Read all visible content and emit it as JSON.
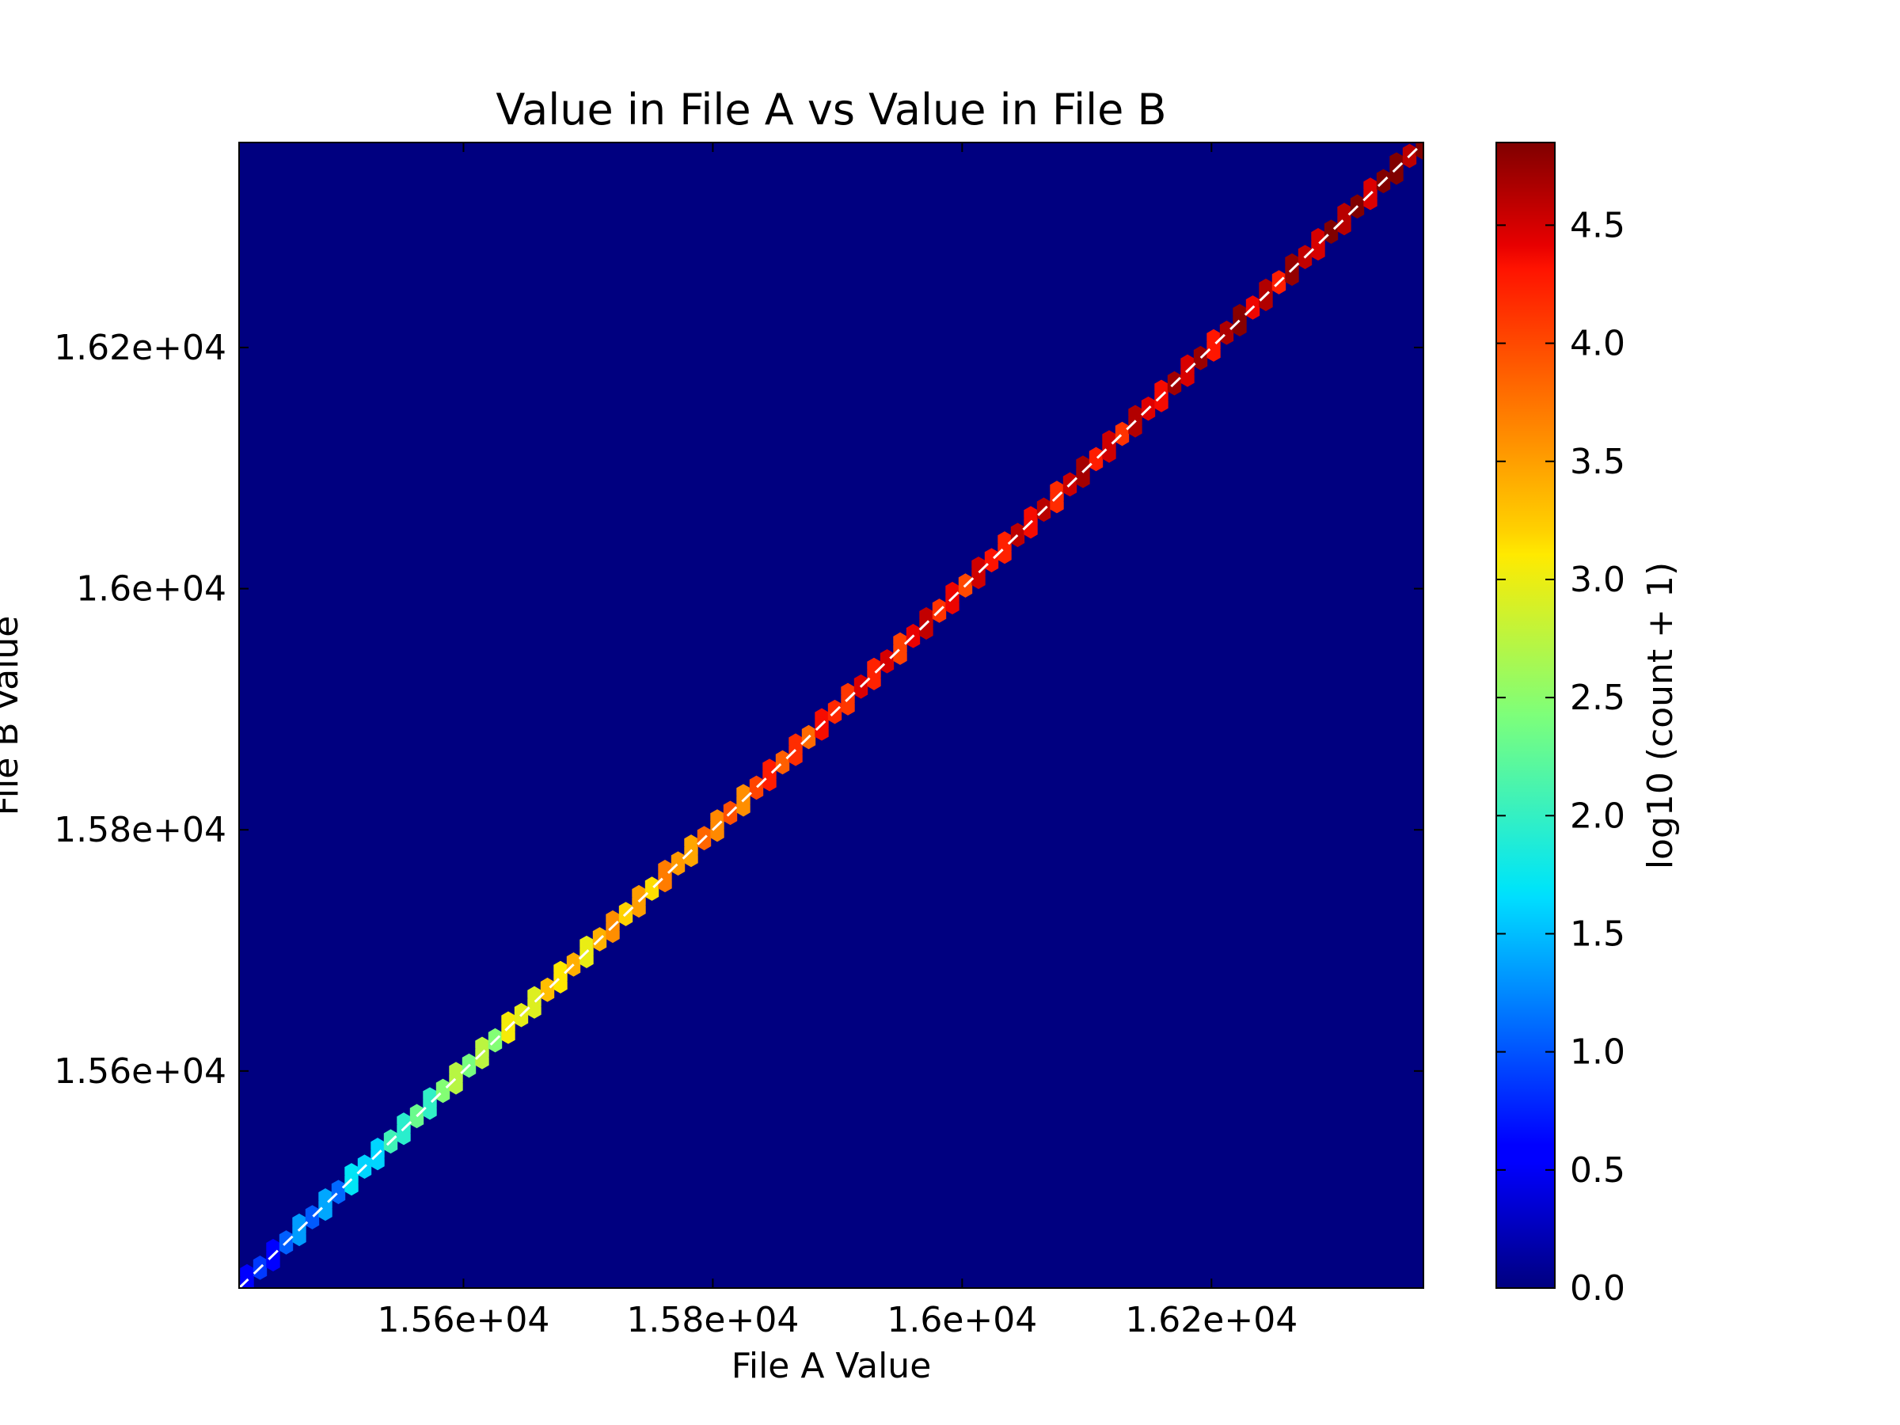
{
  "chart_data": {
    "type": "heatmap",
    "subtype": "hexbin",
    "title": "Value in File A vs Value in File B",
    "xlabel": "File A Value",
    "ylabel": "File B Value",
    "xlim": [
      15420,
      16370
    ],
    "ylim": [
      15420,
      16370
    ],
    "xticks": [
      15600,
      15800,
      16000,
      16200
    ],
    "xtick_labels": [
      "1.56e+04",
      "1.58e+04",
      "1.6e+04",
      "1.62e+04"
    ],
    "yticks": [
      15600,
      15800,
      16000,
      16200
    ],
    "ytick_labels": [
      "1.56e+04",
      "1.58e+04",
      "1.6e+04",
      "1.62e+04"
    ],
    "background_value": 0.0,
    "reference_line": {
      "style": "dashed",
      "color": "#ffffff",
      "equation": "y = x"
    },
    "colorbar": {
      "label": "log10 (count + 1)",
      "colormap": "jet",
      "range": [
        0.0,
        4.85
      ],
      "ticks": [
        0.0,
        0.5,
        1.0,
        1.5,
        2.0,
        2.5,
        3.0,
        3.5,
        4.0,
        4.5
      ],
      "tick_labels": [
        "0.0",
        "0.5",
        "1.0",
        "1.5",
        "2.0",
        "2.5",
        "3.0",
        "3.5",
        "4.0",
        "4.5"
      ]
    },
    "density_profile": {
      "x": [
        15435,
        15480,
        15540,
        15600,
        15650,
        15700,
        15760,
        15800,
        15850,
        15900,
        16000,
        16100,
        16200,
        16300,
        16360
      ],
      "log_count": [
        0.6,
        1.2,
        1.8,
        2.5,
        3.0,
        3.2,
        3.5,
        3.6,
        4.0,
        4.2,
        4.3,
        4.4,
        4.5,
        4.6,
        4.75
      ]
    }
  }
}
